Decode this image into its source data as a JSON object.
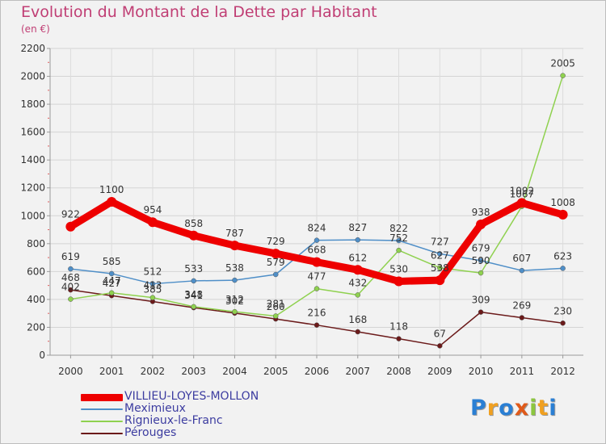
{
  "logo": {
    "letters": [
      {
        "ch": "P",
        "color": "#2a7fd4"
      },
      {
        "ch": "r",
        "color": "#f0a020"
      },
      {
        "ch": "o",
        "color": "#2a7fd4"
      },
      {
        "ch": "x",
        "color": "#e05a1a"
      },
      {
        "ch": "i",
        "color": "#8cc63f"
      },
      {
        "ch": "t",
        "color": "#f0a020"
      },
      {
        "ch": "i",
        "color": "#2a7fd4"
      }
    ]
  },
  "chart_data": {
    "type": "line",
    "title": "Evolution du Montant de la Dette par Habitant",
    "subtitle": "(en €)",
    "x": [
      "2000",
      "2001",
      "2002",
      "2003",
      "2004",
      "2005",
      "2006",
      "2007",
      "2008",
      "2009",
      "2010",
      "2011",
      "2012"
    ],
    "ylim": [
      0,
      2200
    ],
    "yticks": [
      0,
      200,
      400,
      600,
      800,
      1000,
      1200,
      1400,
      1600,
      1800,
      2000,
      2200
    ],
    "grid": true,
    "legend_position": "bottom-left",
    "series": [
      {
        "name": "VILLIEU-LOYES-MOLLON",
        "color": "#ee0000",
        "values": [
          922,
          1100,
          954,
          858,
          787,
          729,
          668,
          612,
          530,
          538,
          938,
          1092,
          1008
        ],
        "labels": [
          "922",
          "1100",
          "954",
          "858",
          "787",
          "729",
          "668",
          "612",
          "530",
          "",
          "938",
          "1092",
          "1008"
        ]
      },
      {
        "name": "Meximieux",
        "color": "#4f8fc8",
        "values": [
          619,
          585,
          512,
          533,
          538,
          579,
          824,
          827,
          822,
          727,
          679,
          607,
          623
        ],
        "labels": [
          "619",
          "585",
          "512",
          "533",
          "538",
          "579",
          "824",
          "827",
          "822",
          "727",
          "679",
          "607",
          "623"
        ]
      },
      {
        "name": "Rignieux-le-Franc",
        "color": "#8fd14f",
        "values": [
          402,
          447,
          413,
          348,
          312,
          281,
          477,
          432,
          752,
          627,
          590,
          1067,
          2005
        ],
        "labels": [
          "402",
          "447",
          "413",
          "348",
          "312",
          "281",
          "477",
          "432",
          "752",
          "627",
          "590",
          "1067",
          "2005"
        ]
      },
      {
        "name": "Pérouges",
        "color": "#6b1a1a",
        "values": [
          468,
          427,
          385,
          341,
          302,
          260,
          216,
          168,
          118,
          67,
          309,
          269,
          230
        ],
        "labels": [
          "468",
          "427",
          "385",
          "341",
          "302",
          "260",
          "216",
          "168",
          "118",
          "67",
          "309",
          "269",
          "230"
        ]
      }
    ],
    "extra_labels": [
      {
        "x": "2009",
        "y": 538,
        "text": "538"
      }
    ]
  }
}
